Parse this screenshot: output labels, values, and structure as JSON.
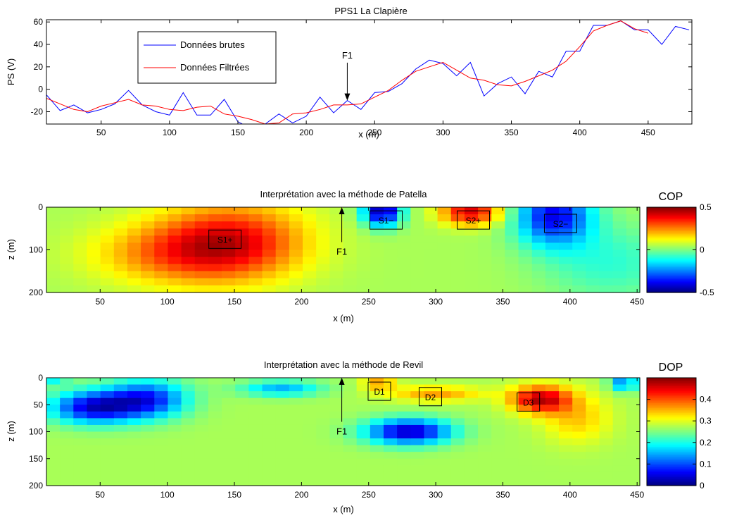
{
  "top_plot": {
    "title": "PPS1 La Clapière",
    "xlabel": "x (m)",
    "ylabel": "PS (V)",
    "xlim": [
      10,
      482
    ],
    "ylim": [
      -31,
      62
    ],
    "xticks": [
      50,
      100,
      150,
      200,
      250,
      300,
      350,
      400,
      450
    ],
    "yticks": [
      -20,
      0,
      20,
      40,
      60
    ],
    "legend": {
      "placement": "top-left",
      "entries": [
        {
          "label": "Données brutes",
          "color": "#0000ff"
        },
        {
          "label": "Données Filtrées",
          "color": "#ff0000"
        }
      ]
    },
    "annotation": {
      "label": "F1",
      "x": 230,
      "y_tip": -10,
      "y_label": 30
    }
  },
  "chart_data": [
    {
      "type": "line",
      "title": "PPS1 La Clapière",
      "xlabel": "x (m)",
      "ylabel": "PS (V)",
      "xlim": [
        10,
        482
      ],
      "ylim": [
        -31,
        62
      ],
      "legend_position": "top-left",
      "grid": false,
      "series": [
        {
          "name": "Données brutes",
          "color": "#0000ff",
          "x": [
            10,
            20,
            30,
            40,
            50,
            60,
            70,
            80,
            90,
            100,
            110,
            120,
            130,
            140,
            150,
            160,
            170,
            180,
            190,
            200,
            210,
            220,
            230,
            240,
            250,
            260,
            270,
            280,
            290,
            300,
            310,
            320,
            330,
            340,
            350,
            360,
            370,
            380,
            390,
            400,
            410,
            420,
            430,
            440,
            450,
            460,
            470,
            480
          ],
          "y": [
            -5,
            -19,
            -14,
            -21,
            -18,
            -13,
            -1,
            -14,
            -20,
            -23,
            -3,
            -23,
            -23,
            -9,
            -29,
            -35,
            -31,
            -22,
            -30,
            -24,
            -7,
            -21,
            -10,
            -18,
            -3,
            -2,
            5,
            18,
            26,
            23,
            12,
            24,
            -6,
            5,
            11,
            -4,
            16,
            11,
            34,
            34,
            57,
            57,
            61,
            53,
            53,
            40,
            56,
            53
          ]
        },
        {
          "name": "Données Filtrées",
          "color": "#ff0000",
          "x": [
            10,
            20,
            30,
            40,
            50,
            60,
            70,
            80,
            90,
            100,
            110,
            120,
            130,
            140,
            150,
            160,
            170,
            180,
            190,
            200,
            210,
            220,
            230,
            240,
            250,
            260,
            270,
            280,
            290,
            300,
            310,
            320,
            330,
            340,
            350,
            360,
            370,
            380,
            390,
            400,
            410,
            420,
            430,
            440,
            450
          ],
          "y": [
            -8,
            -13,
            -18,
            -20,
            -15,
            -12,
            -9,
            -14,
            -15,
            -18,
            -19,
            -16,
            -15,
            -22,
            -24,
            -27,
            -31,
            -30,
            -22,
            -21,
            -18,
            -14,
            -14,
            -13,
            -7,
            -1,
            8,
            16,
            20,
            24,
            17,
            10,
            8,
            4,
            3,
            7,
            12,
            17,
            25,
            38,
            52,
            57,
            61,
            54,
            50
          ]
        }
      ]
    },
    {
      "type": "heatmap",
      "title": "Interprétation avec la méthode de Patella",
      "xlabel": "x (m)",
      "ylabel": "z (m)",
      "xlim": [
        10,
        452
      ],
      "ylim": [
        0,
        200
      ],
      "y_reversed": true,
      "xticks": [
        50,
        100,
        150,
        200,
        250,
        300,
        350,
        400,
        450
      ],
      "yticks": [
        0,
        100,
        200
      ],
      "colorbar": {
        "label": "COP",
        "min": -0.5,
        "max": 0.5,
        "ticks": [
          "-0.5",
          "0",
          "0.5"
        ],
        "colormap": "jet"
      },
      "anomalies": [
        {
          "x": 148,
          "z": 80,
          "amp": 0.33,
          "sx": 55,
          "sz": 90
        },
        {
          "x": 102,
          "z": 110,
          "amp": 0.18,
          "sx": 60,
          "sz": 70
        },
        {
          "x": 260,
          "z": 10,
          "amp": -0.5,
          "sx": 14,
          "sz": 35
        },
        {
          "x": 326,
          "z": 12,
          "amp": 0.37,
          "sx": 22,
          "sz": 30
        },
        {
          "x": 388,
          "z": 20,
          "amp": -0.42,
          "sx": 28,
          "sz": 70
        },
        {
          "x": 430,
          "z": 130,
          "amp": -0.12,
          "sx": 50,
          "sz": 90
        }
      ],
      "labels": [
        {
          "text": "S1+",
          "x": 143,
          "z": 75
        },
        {
          "text": "S1−",
          "x": 263,
          "z": 30
        },
        {
          "text": "S2+",
          "x": 328,
          "z": 30
        },
        {
          "text": "S2−",
          "x": 393,
          "z": 38
        }
      ],
      "annotation": {
        "label": "F1",
        "x": 230,
        "z_tip": 0,
        "z_label": 105
      }
    },
    {
      "type": "heatmap",
      "title": "Interprétation avec la méthode de Revil",
      "xlabel": "x (m)",
      "ylabel": "z (m)",
      "xlim": [
        10,
        452
      ],
      "ylim": [
        0,
        200
      ],
      "y_reversed": true,
      "xticks": [
        50,
        100,
        150,
        200,
        250,
        300,
        350,
        400,
        450
      ],
      "yticks": [
        0,
        50,
        100,
        150,
        200
      ],
      "colorbar": {
        "label": "DOP",
        "min": 0,
        "max": 0.5,
        "ticks": [
          "0",
          "0.1",
          "0.2",
          "0.3",
          "0.4"
        ],
        "colormap": "jet"
      },
      "anomalies": [
        {
          "x": 45,
          "z": 55,
          "amp": -0.22,
          "sx": 32,
          "sz": 30
        },
        {
          "x": 85,
          "z": 40,
          "amp": -0.19,
          "sx": 30,
          "sz": 35
        },
        {
          "x": 280,
          "z": 100,
          "amp": -0.24,
          "sx": 32,
          "sz": 24
        },
        {
          "x": 185,
          "z": 20,
          "amp": -0.12,
          "sx": 30,
          "sz": 15
        },
        {
          "x": 258,
          "z": 10,
          "amp": 0.09,
          "sx": 12,
          "sz": 14
        },
        {
          "x": 300,
          "z": 30,
          "amp": 0.09,
          "sx": 35,
          "sz": 14
        },
        {
          "x": 378,
          "z": 40,
          "amp": 0.2,
          "sx": 22,
          "sz": 25
        },
        {
          "x": 405,
          "z": 75,
          "amp": 0.07,
          "sx": 25,
          "sz": 45
        },
        {
          "x": 440,
          "z": 10,
          "amp": -0.15,
          "sx": 10,
          "sz": 15
        },
        {
          "x": 10,
          "z": 5,
          "amp": -0.08,
          "sx": 15,
          "sz": 10
        }
      ],
      "labels": [
        {
          "text": "D1",
          "x": 258,
          "z": 25
        },
        {
          "text": "D2",
          "x": 296,
          "z": 35
        },
        {
          "text": "D3",
          "x": 369,
          "z": 45
        }
      ],
      "annotation": {
        "label": "F1",
        "x": 230,
        "z_tip": 0,
        "z_label": 100
      }
    }
  ]
}
